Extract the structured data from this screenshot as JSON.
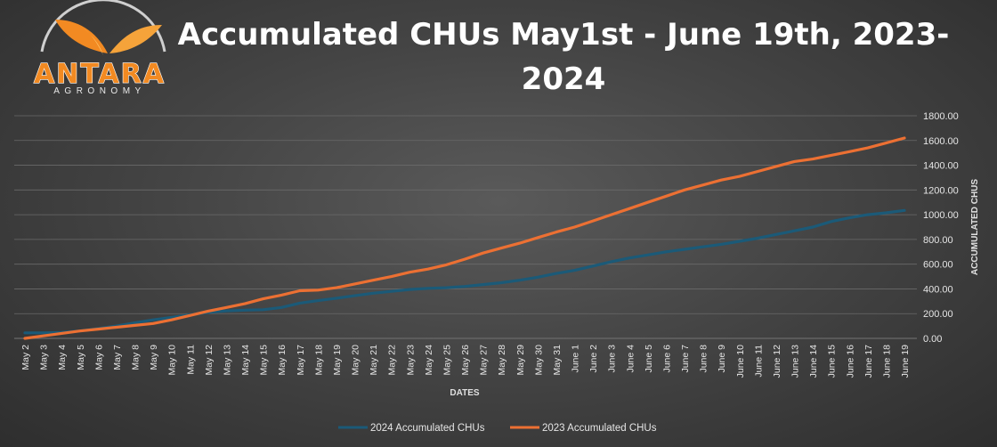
{
  "logo": {
    "brand": "ANTARA",
    "sub": "AGRONOMY"
  },
  "colors": {
    "series_2024": "#1b5a78",
    "series_2023": "#ec7033",
    "grid": "#6a6a6a",
    "logo_orange": "#f28a22"
  },
  "chart_data": {
    "type": "line",
    "title_lines": [
      "Accumulated CHUs May1st - June 19th, 2023-",
      "2024"
    ],
    "xlabel": "DATES",
    "ylabel": "ACCUMULATED CHUS",
    "ylim": [
      0,
      1800
    ],
    "y_ticks": [
      "0.00",
      "200.00",
      "400.00",
      "600.00",
      "800.00",
      "1000.00",
      "1200.00",
      "1400.00",
      "1600.00",
      "1800.00"
    ],
    "grid": true,
    "legend_position": "bottom",
    "categories": [
      "May 2",
      "May 3",
      "May 4",
      "May 5",
      "May 6",
      "May 7",
      "May 8",
      "May 9",
      "May 10",
      "May 11",
      "May 12",
      "May 13",
      "May 14",
      "May 15",
      "May 16",
      "May 17",
      "May 18",
      "May 19",
      "May 20",
      "May 21",
      "May 22",
      "May 23",
      "May 24",
      "May 25",
      "May 26",
      "May 27",
      "May 28",
      "May 29",
      "May 30",
      "May 31",
      "June 1",
      "June 2",
      "June 3",
      "June 4",
      "June 5",
      "June 6",
      "June 7",
      "June 8",
      "June 9",
      "June 10",
      "June 11",
      "June 12",
      "June 13",
      "June 14",
      "June 15",
      "June 16",
      "June 17",
      "June 18",
      "June 19"
    ],
    "series": [
      {
        "name": "2024 Accumulated CHUs",
        "values": [
          45,
          45,
          48,
          60,
          80,
          100,
          125,
          150,
          170,
          190,
          210,
          222,
          228,
          232,
          250,
          285,
          305,
          325,
          345,
          365,
          380,
          395,
          405,
          410,
          420,
          435,
          450,
          470,
          495,
          525,
          550,
          585,
          620,
          650,
          675,
          700,
          720,
          740,
          760,
          785,
          810,
          840,
          870,
          900,
          945,
          975,
          1000,
          1015,
          1035
        ]
      },
      {
        "name": "2023 Accumulated CHUs",
        "values": [
          0,
          20,
          40,
          60,
          75,
          90,
          105,
          120,
          150,
          185,
          220,
          250,
          280,
          320,
          350,
          385,
          390,
          410,
          440,
          470,
          500,
          535,
          560,
          595,
          640,
          690,
          730,
          770,
          815,
          860,
          900,
          950,
          1000,
          1050,
          1100,
          1150,
          1200,
          1240,
          1280,
          1310,
          1350,
          1390,
          1430,
          1450,
          1480,
          1510,
          1540,
          1580,
          1620
        ]
      }
    ]
  }
}
